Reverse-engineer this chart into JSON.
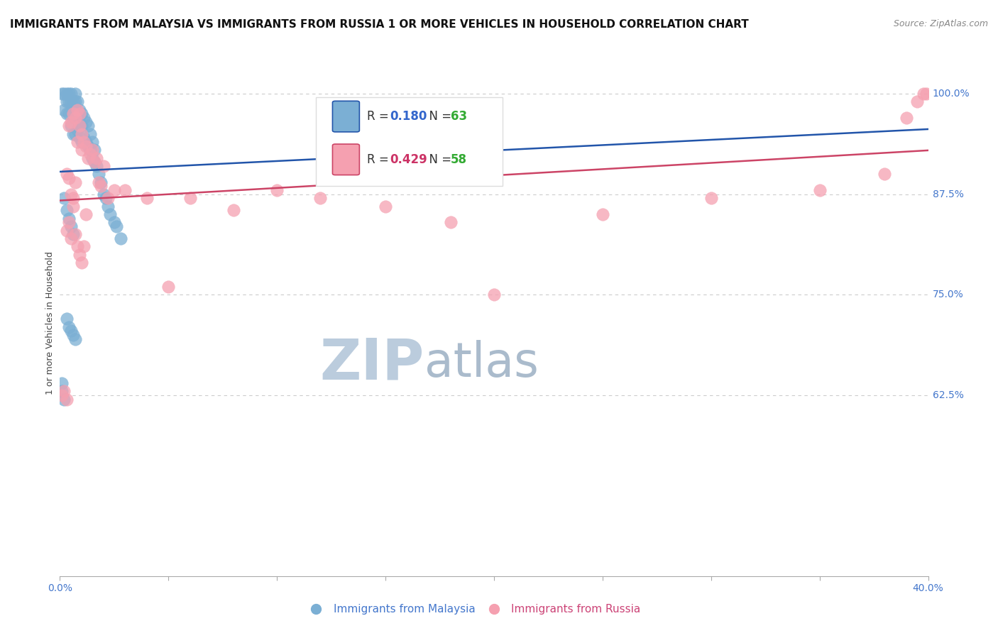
{
  "title": "IMMIGRANTS FROM MALAYSIA VS IMMIGRANTS FROM RUSSIA 1 OR MORE VEHICLES IN HOUSEHOLD CORRELATION CHART",
  "source": "Source: ZipAtlas.com",
  "ylabel": "1 or more Vehicles in Household",
  "xlim": [
    0.0,
    0.4
  ],
  "ylim": [
    0.4,
    1.03
  ],
  "xticks": [
    0.0,
    0.05,
    0.1,
    0.15,
    0.2,
    0.25,
    0.3,
    0.35,
    0.4
  ],
  "yticks_right": [
    0.625,
    0.75,
    0.875,
    1.0
  ],
  "ytick_labels_right": [
    "62.5%",
    "75.0%",
    "87.5%",
    "100.0%"
  ],
  "series": [
    {
      "name": "Immigrants from Malaysia",
      "R": 0.18,
      "N": 63,
      "color": "#7BAFD4",
      "edge_color": "#5588BB",
      "line_color": "#2255AA",
      "x": [
        0.001,
        0.002,
        0.002,
        0.003,
        0.003,
        0.003,
        0.004,
        0.004,
        0.004,
        0.005,
        0.005,
        0.005,
        0.006,
        0.006,
        0.006,
        0.007,
        0.007,
        0.007,
        0.007,
        0.008,
        0.008,
        0.008,
        0.009,
        0.009,
        0.009,
        0.01,
        0.01,
        0.01,
        0.011,
        0.011,
        0.012,
        0.012,
        0.013,
        0.013,
        0.014,
        0.014,
        0.015,
        0.015,
        0.016,
        0.016,
        0.017,
        0.018,
        0.019,
        0.02,
        0.021,
        0.022,
        0.023,
        0.025,
        0.026,
        0.028,
        0.002,
        0.003,
        0.004,
        0.005,
        0.006,
        0.003,
        0.004,
        0.005,
        0.006,
        0.007,
        0.001,
        0.001,
        0.002
      ],
      "y": [
        1.0,
        1.0,
        0.98,
        1.0,
        0.99,
        0.975,
        1.0,
        0.99,
        0.975,
        1.0,
        0.99,
        0.96,
        0.99,
        0.975,
        0.95,
        1.0,
        0.99,
        0.97,
        0.95,
        0.99,
        0.975,
        0.955,
        0.98,
        0.965,
        0.945,
        0.975,
        0.96,
        0.94,
        0.97,
        0.945,
        0.965,
        0.94,
        0.96,
        0.935,
        0.95,
        0.93,
        0.94,
        0.92,
        0.93,
        0.915,
        0.91,
        0.9,
        0.89,
        0.875,
        0.87,
        0.86,
        0.85,
        0.84,
        0.835,
        0.82,
        0.87,
        0.855,
        0.845,
        0.835,
        0.825,
        0.72,
        0.71,
        0.705,
        0.7,
        0.695,
        0.64,
        0.63,
        0.62
      ]
    },
    {
      "name": "Immigrants from Russia",
      "R": 0.429,
      "N": 58,
      "color": "#F5A0B0",
      "edge_color": "#DD7088",
      "line_color": "#CC4466",
      "x": [
        0.001,
        0.002,
        0.003,
        0.003,
        0.004,
        0.004,
        0.005,
        0.005,
        0.006,
        0.006,
        0.007,
        0.007,
        0.008,
        0.008,
        0.009,
        0.009,
        0.01,
        0.01,
        0.011,
        0.012,
        0.013,
        0.014,
        0.015,
        0.016,
        0.017,
        0.018,
        0.019,
        0.02,
        0.022,
        0.025,
        0.003,
        0.004,
        0.005,
        0.006,
        0.007,
        0.008,
        0.009,
        0.01,
        0.011,
        0.012,
        0.03,
        0.04,
        0.05,
        0.06,
        0.08,
        0.1,
        0.12,
        0.15,
        0.18,
        0.2,
        0.25,
        0.3,
        0.35,
        0.38,
        0.39,
        0.395,
        0.398,
        0.399
      ],
      "y": [
        0.625,
        0.63,
        0.62,
        0.9,
        0.895,
        0.96,
        0.965,
        0.875,
        0.87,
        0.975,
        0.97,
        0.89,
        0.98,
        0.94,
        0.975,
        0.96,
        0.95,
        0.93,
        0.94,
        0.935,
        0.92,
        0.925,
        0.93,
        0.915,
        0.92,
        0.89,
        0.885,
        0.91,
        0.87,
        0.88,
        0.83,
        0.84,
        0.82,
        0.86,
        0.825,
        0.81,
        0.8,
        0.79,
        0.81,
        0.85,
        0.88,
        0.87,
        0.76,
        0.87,
        0.855,
        0.88,
        0.87,
        0.86,
        0.84,
        0.75,
        0.85,
        0.87,
        0.88,
        0.9,
        0.97,
        0.99,
        1.0,
        1.0
      ]
    }
  ],
  "watermark_zip": "ZIP",
  "watermark_atlas": "atlas",
  "watermark_color": "#BBCCDD",
  "background_color": "#FFFFFF",
  "grid_color": "#CCCCCC",
  "title_fontsize": 11,
  "axis_label_fontsize": 9,
  "tick_fontsize": 10,
  "legend_R_color_malaysia": "#3366CC",
  "legend_R_color_russia": "#CC3366",
  "legend_N_color": "#33AA33"
}
